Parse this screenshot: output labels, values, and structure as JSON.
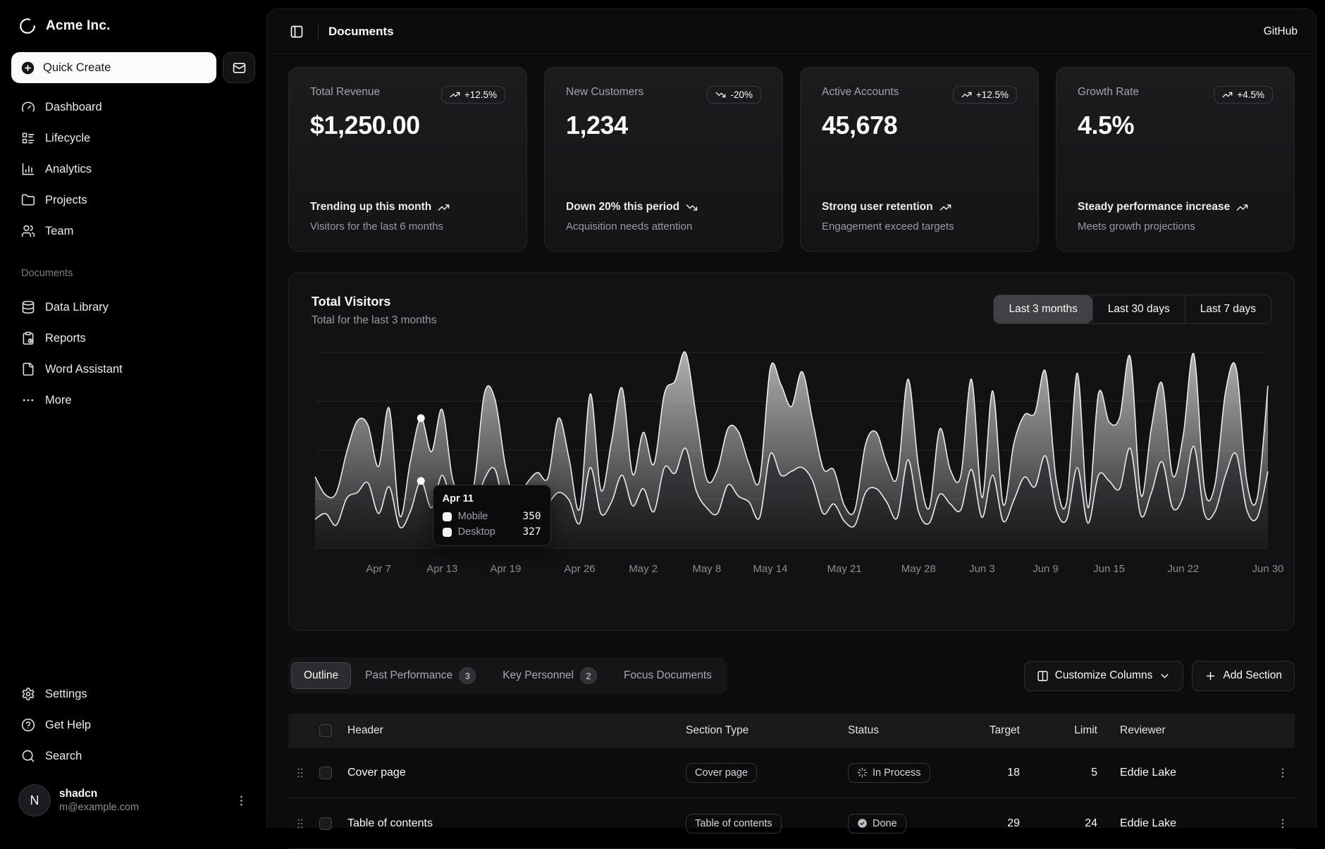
{
  "brand": {
    "name": "Acme Inc."
  },
  "sidebar": {
    "quick_create_label": "Quick Create",
    "nav": [
      {
        "label": "Dashboard",
        "icon": "gauge"
      },
      {
        "label": "Lifecycle",
        "icon": "layout-list"
      },
      {
        "label": "Analytics",
        "icon": "chart-column"
      },
      {
        "label": "Projects",
        "icon": "folder"
      },
      {
        "label": "Team",
        "icon": "users"
      }
    ],
    "documents_label": "Documents",
    "documents": [
      {
        "label": "Data Library",
        "icon": "database"
      },
      {
        "label": "Reports",
        "icon": "clipboard"
      },
      {
        "label": "Word Assistant",
        "icon": "file"
      },
      {
        "label": "More",
        "icon": "ellipsis"
      }
    ],
    "footer": [
      {
        "label": "Settings",
        "icon": "settings"
      },
      {
        "label": "Get Help",
        "icon": "help-circle"
      },
      {
        "label": "Search",
        "icon": "search"
      }
    ],
    "user": {
      "name": "shadcn",
      "email": "m@example.com",
      "initial": "N"
    }
  },
  "header": {
    "title": "Documents",
    "link": "GitHub"
  },
  "stat_cards": [
    {
      "title": "Total Revenue",
      "badge": "+12.5%",
      "trend": "up",
      "value": "$1,250.00",
      "footer_title": "Trending up this month",
      "footer_desc": "Visitors for the last 6 months"
    },
    {
      "title": "New Customers",
      "badge": "-20%",
      "trend": "down",
      "value": "1,234",
      "footer_title": "Down 20% this period",
      "footer_desc": "Acquisition needs attention"
    },
    {
      "title": "Active Accounts",
      "badge": "+12.5%",
      "trend": "up",
      "value": "45,678",
      "footer_title": "Strong user retention",
      "footer_desc": "Engagement exceed targets"
    },
    {
      "title": "Growth Rate",
      "badge": "+4.5%",
      "trend": "up",
      "value": "4.5%",
      "footer_title": "Steady performance increase",
      "footer_desc": "Meets growth projections"
    }
  ],
  "visitors": {
    "title": "Total Visitors",
    "subtitle": "Total for the last 3 months",
    "ranges": [
      "Last 3 months",
      "Last 30 days",
      "Last 7 days"
    ],
    "active_range": "Last 3 months"
  },
  "chart_data": {
    "type": "area",
    "stacked": true,
    "title": "Total Visitors",
    "x_start": "Apr 1",
    "x_end": "Jun 30",
    "points": 91,
    "ylim": [
      0,
      1020
    ],
    "grid": "horizontal",
    "legend": "none (tooltip only)",
    "x_ticks": [
      {
        "label": "Apr 7",
        "i": 6
      },
      {
        "label": "Apr 13",
        "i": 12
      },
      {
        "label": "Apr 19",
        "i": 18
      },
      {
        "label": "Apr 26",
        "i": 25
      },
      {
        "label": "May 2",
        "i": 31
      },
      {
        "label": "May 8",
        "i": 37
      },
      {
        "label": "May 14",
        "i": 43
      },
      {
        "label": "May 21",
        "i": 50
      },
      {
        "label": "May 28",
        "i": 57
      },
      {
        "label": "Jun 3",
        "i": 63
      },
      {
        "label": "Jun 9",
        "i": 69
      },
      {
        "label": "Jun 15",
        "i": 75
      },
      {
        "label": "Jun 22",
        "i": 82
      },
      {
        "label": "Jun 30",
        "i": 90
      }
    ],
    "series": [
      {
        "name": "Mobile",
        "values": [
          150,
          180,
          120,
          260,
          290,
          340,
          180,
          320,
          110,
          190,
          350,
          210,
          380,
          220,
          170,
          190,
          360,
          410,
          180,
          150,
          200,
          170,
          230,
          290,
          250,
          130,
          420,
          180,
          240,
          380,
          220,
          310,
          190,
          420,
          390,
          520,
          300,
          210,
          180,
          330,
          270,
          240,
          160,
          490,
          380,
          400,
          420,
          350,
          180,
          230,
          140,
          120,
          290,
          310,
          240,
          160,
          460,
          190,
          130,
          280,
          230,
          200,
          410,
          160,
          380,
          140,
          250,
          370,
          320,
          480,
          200,
          150,
          420,
          130,
          380,
          350,
          310,
          520,
          170,
          290,
          450,
          210,
          270,
          530,
          180,
          190,
          380,
          490,
          200,
          160,
          400
        ]
      },
      {
        "name": "Desktop",
        "values": [
          222,
          97,
          167,
          242,
          373,
          301,
          245,
          409,
          59,
          261,
          327,
          292,
          342,
          137,
          120,
          138,
          446,
          364,
          243,
          89,
          137,
          224,
          138,
          387,
          215,
          75,
          383,
          122,
          315,
          454,
          165,
          293,
          247,
          385,
          481,
          498,
          388,
          149,
          227,
          293,
          335,
          197,
          197,
          448,
          473,
          338,
          499,
          315,
          235,
          177,
          82,
          81,
          252,
          294,
          201,
          213,
          420,
          233,
          78,
          340,
          178,
          178,
          470,
          103,
          439,
          88,
          294,
          323,
          385,
          438,
          155,
          92,
          492,
          81,
          426,
          307,
          371,
          475,
          107,
          341,
          408,
          169,
          317,
          480,
          132,
          141,
          434,
          448,
          149,
          103,
          446
        ]
      }
    ],
    "highlight_index": 10,
    "tooltip": {
      "date": "Apr 11",
      "rows": [
        {
          "label": "Mobile",
          "value": "350"
        },
        {
          "label": "Desktop",
          "value": "327"
        }
      ]
    }
  },
  "tabs": [
    {
      "label": "Outline",
      "active": true
    },
    {
      "label": "Past Performance",
      "count": "3"
    },
    {
      "label": "Key Personnel",
      "count": "2"
    },
    {
      "label": "Focus Documents"
    }
  ],
  "actions": {
    "customize_label": "Customize Columns",
    "add_label": "Add Section"
  },
  "table": {
    "columns": [
      "Header",
      "Section Type",
      "Status",
      "Target",
      "Limit",
      "Reviewer"
    ],
    "rows": [
      {
        "header": "Cover page",
        "section_type": "Cover page",
        "status": "In Process",
        "status_icon": "loader",
        "target": "18",
        "limit": "5",
        "reviewer": "Eddie Lake"
      },
      {
        "header": "Table of contents",
        "section_type": "Table of contents",
        "status": "Done",
        "status_icon": "check",
        "target": "29",
        "limit": "24",
        "reviewer": "Eddie Lake"
      }
    ]
  },
  "colors": {
    "background": "#000000",
    "panel": "#0c0c0e",
    "card_border": "#27272b",
    "accent_text": "#fafafa",
    "muted_text": "#9a9aa3",
    "chart_stroke": "#ececf0"
  }
}
